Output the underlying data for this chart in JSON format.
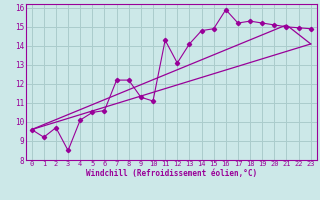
{
  "xlabel": "Windchill (Refroidissement éolien,°C)",
  "background_color": "#cce8e8",
  "grid_color": "#aacccc",
  "line_color": "#990099",
  "xlim": [
    -0.5,
    23.5
  ],
  "ylim": [
    8,
    16.2
  ],
  "xticks": [
    0,
    1,
    2,
    3,
    4,
    5,
    6,
    7,
    8,
    9,
    10,
    11,
    12,
    13,
    14,
    15,
    16,
    17,
    18,
    19,
    20,
    21,
    22,
    23
  ],
  "yticks": [
    8,
    9,
    10,
    11,
    12,
    13,
    14,
    15,
    16
  ],
  "series1_x": [
    0,
    1,
    2,
    3,
    4,
    5,
    6,
    7,
    8,
    9,
    10,
    11,
    12,
    13,
    14,
    15,
    16,
    17,
    18,
    19,
    20,
    21,
    22,
    23
  ],
  "series1_y": [
    9.6,
    9.2,
    9.7,
    8.5,
    10.1,
    10.5,
    10.6,
    12.2,
    12.2,
    11.3,
    11.1,
    14.3,
    13.1,
    14.1,
    14.8,
    14.9,
    15.9,
    15.2,
    15.3,
    15.2,
    15.1,
    15.0,
    14.95,
    14.9
  ],
  "series2_x": [
    0,
    23
  ],
  "series2_y": [
    9.6,
    14.1
  ],
  "series3_x": [
    0,
    21,
    23
  ],
  "series3_y": [
    9.6,
    15.1,
    14.1
  ]
}
